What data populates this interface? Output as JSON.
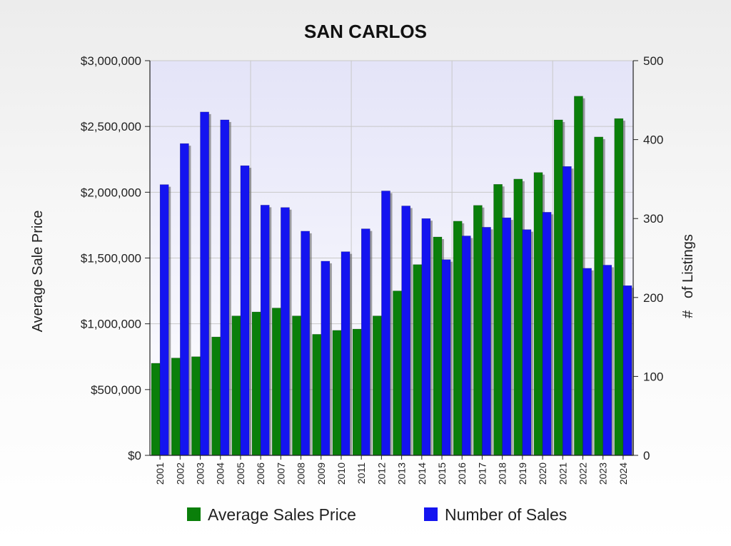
{
  "chart_data": {
    "type": "bar",
    "title": "SAN CARLOS",
    "ylabel": "Average Sale Price",
    "y2label": "#   of Listings",
    "xlabel": "",
    "categories": [
      "2001",
      "2002",
      "2003",
      "2004",
      "2005",
      "2006",
      "2007",
      "2008",
      "2009",
      "2010",
      "2011",
      "2012",
      "2013",
      "2014",
      "2015",
      "2016",
      "2017",
      "2018",
      "2019",
      "2020",
      "2021",
      "2022",
      "2023",
      "2024"
    ],
    "ylim": [
      0,
      3000000
    ],
    "y2lim": [
      0,
      500
    ],
    "yticks": [
      "$0",
      "$500,000",
      "$1,000,000",
      "$1,500,000",
      "$2,000,000",
      "$2,500,000",
      "$3,000,000"
    ],
    "y2ticks": [
      "0",
      "100",
      "200",
      "300",
      "400",
      "500"
    ],
    "grid": true,
    "legend_position": "bottom",
    "series": [
      {
        "name": "Average Sales Price",
        "axis": "left",
        "color": "#0a7f0a",
        "values": [
          700000,
          740000,
          750000,
          900000,
          1060000,
          1090000,
          1120000,
          1060000,
          920000,
          950000,
          960000,
          1060000,
          1250000,
          1450000,
          1660000,
          1780000,
          1900000,
          2060000,
          2100000,
          2150000,
          2550000,
          2730000,
          2420000,
          2560000
        ]
      },
      {
        "name": "Number of Sales",
        "axis": "right",
        "color": "#1414f0",
        "values": [
          343,
          395,
          435,
          425,
          367,
          317,
          314,
          284,
          246,
          258,
          287,
          335,
          316,
          300,
          248,
          278,
          289,
          301,
          286,
          308,
          366,
          237,
          241,
          215
        ]
      }
    ]
  }
}
